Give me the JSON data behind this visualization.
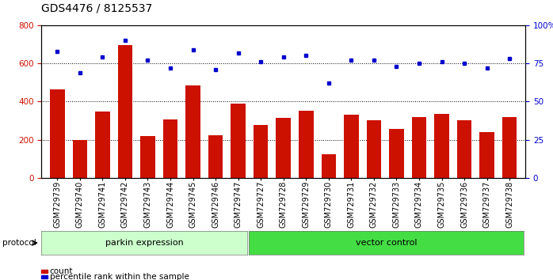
{
  "title": "GDS4476 / 8125537",
  "samples": [
    "GSM729739",
    "GSM729740",
    "GSM729741",
    "GSM729742",
    "GSM729743",
    "GSM729744",
    "GSM729745",
    "GSM729746",
    "GSM729747",
    "GSM729727",
    "GSM729728",
    "GSM729729",
    "GSM729730",
    "GSM729731",
    "GSM729732",
    "GSM729733",
    "GSM729734",
    "GSM729735",
    "GSM729736",
    "GSM729737",
    "GSM729738"
  ],
  "counts": [
    465,
    200,
    348,
    695,
    220,
    305,
    485,
    225,
    390,
    275,
    315,
    350,
    125,
    330,
    300,
    255,
    320,
    335,
    300,
    238,
    320
  ],
  "percentile_ranks": [
    83,
    69,
    79,
    90,
    77,
    72,
    84,
    71,
    82,
    76,
    79,
    80,
    62,
    77,
    77,
    73,
    75,
    76,
    75,
    72,
    78
  ],
  "parkin_count": 9,
  "vector_count": 12,
  "group1_label": "parkin expression",
  "group2_label": "vector control",
  "protocol_label": "protocol",
  "bar_color": "#CC1100",
  "dot_color": "#0000CC",
  "left_yticks": [
    0,
    200,
    400,
    600,
    800
  ],
  "right_yticks": [
    0,
    25,
    50,
    75,
    100
  ],
  "right_yticklabels": [
    "0",
    "25",
    "50",
    "75",
    "100%"
  ],
  "ylim_left": [
    0,
    800
  ],
  "ylim_right": [
    0,
    100
  ],
  "legend_count_label": "count",
  "legend_pct_label": "percentile rank within the sample",
  "group1_bg": "#ccffcc",
  "group2_bg": "#44dd44",
  "title_fontsize": 10,
  "tick_fontsize": 7.5,
  "xlabel_fontsize": 7
}
